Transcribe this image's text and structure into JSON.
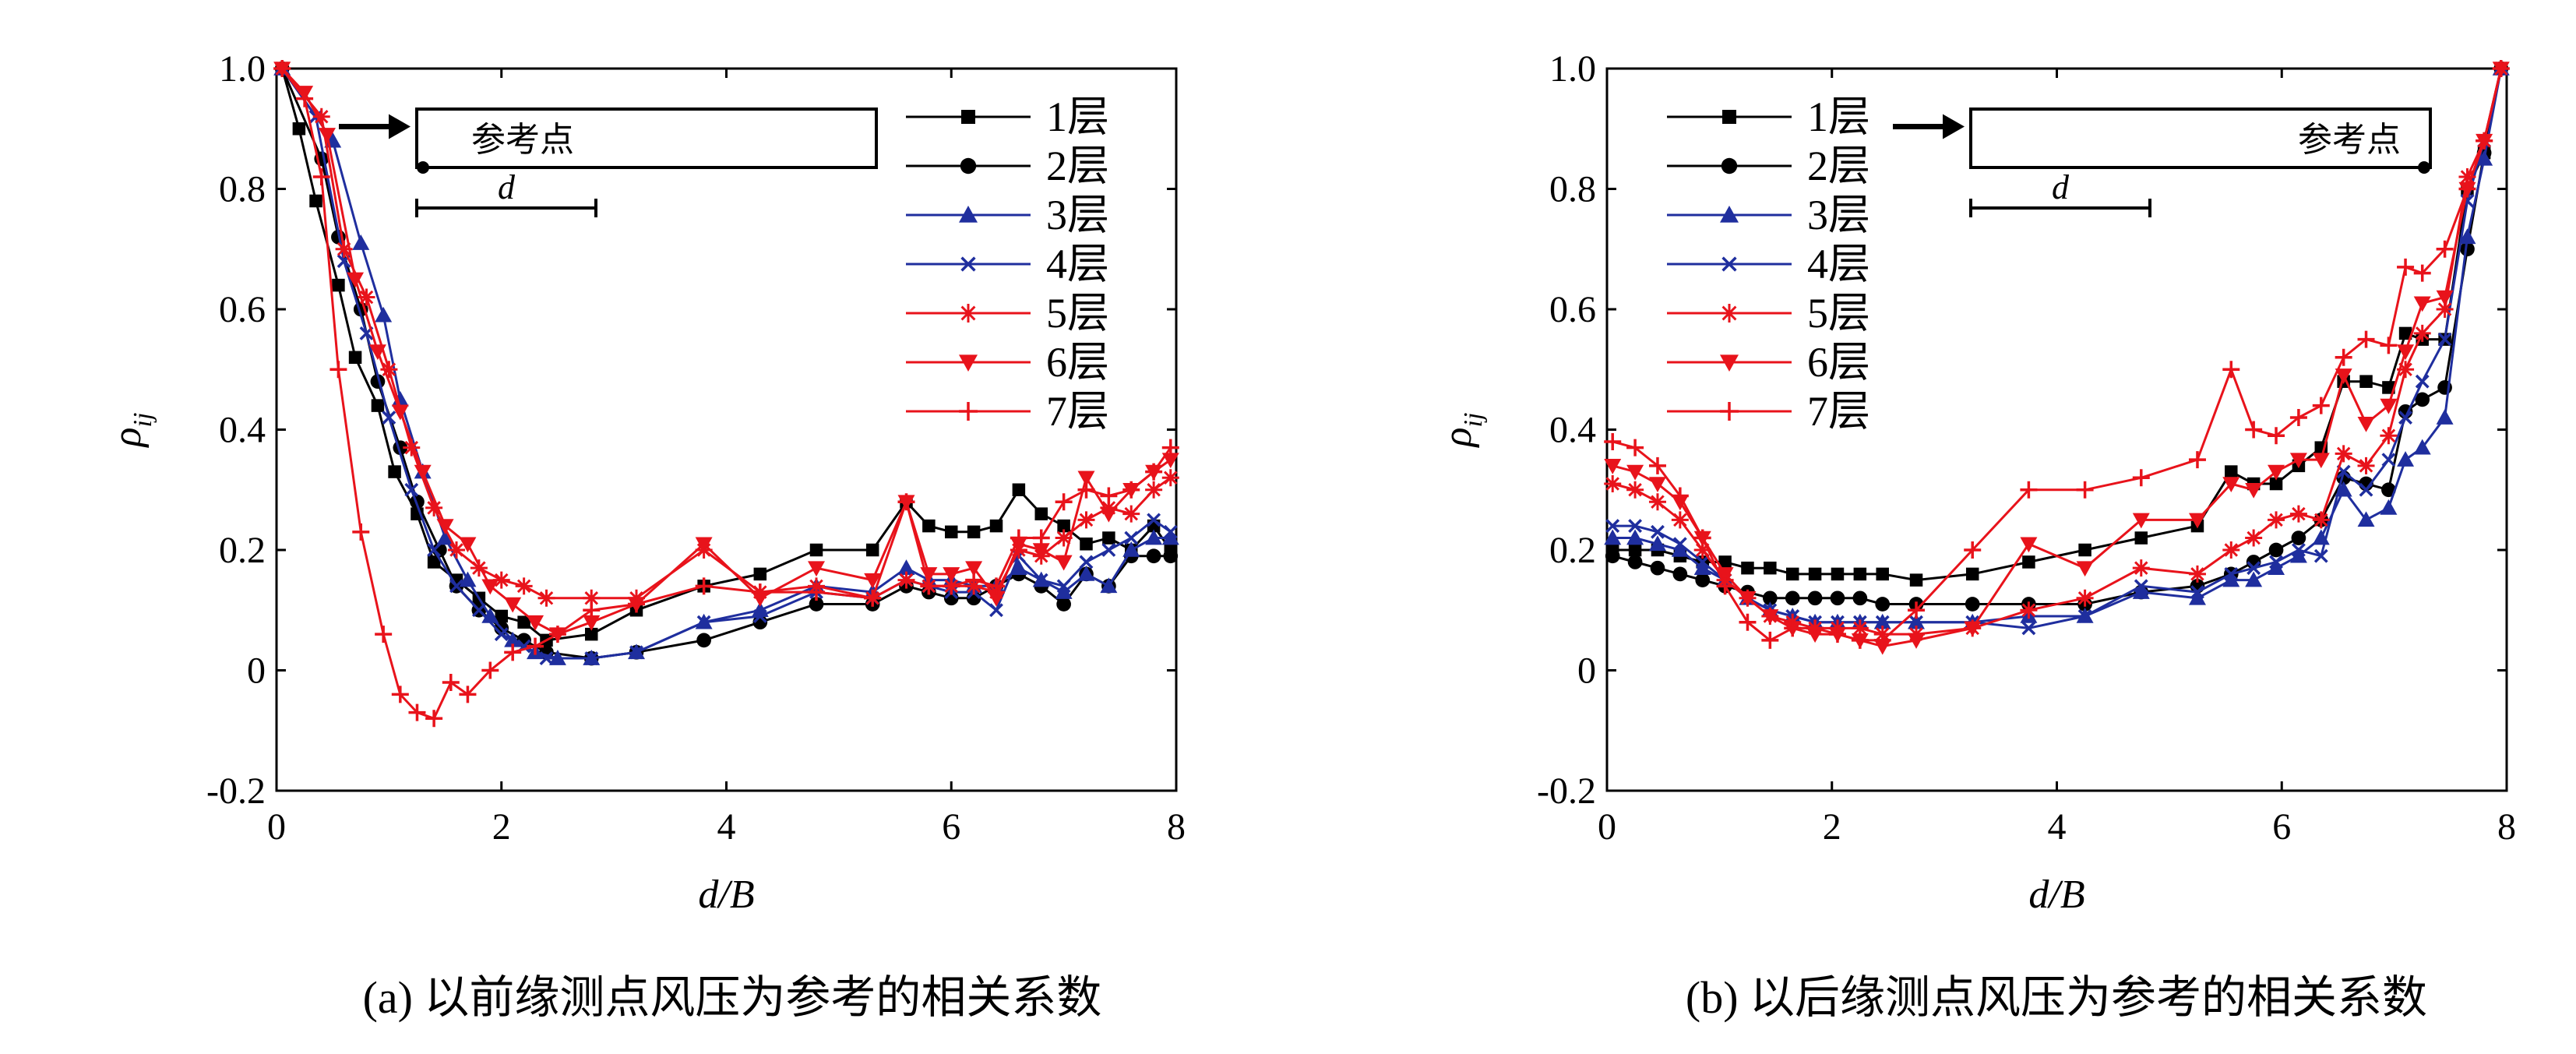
{
  "colors": {
    "1层": "#000000",
    "2层": "#000000",
    "3层": "#1f2e9e",
    "4层": "#1f2e9e",
    "5层": "#e8131b",
    "6层": "#e8131b",
    "7层": "#e8131b"
  },
  "chart_data": [
    {
      "type": "line",
      "caption": "(a) 以前缘测点风压为参考的相关系数",
      "xlabel": "d/B",
      "ylabel": "ρ",
      "ylabel_sub": "ij",
      "xlim": [
        0,
        8
      ],
      "ylim": [
        -0.2,
        1.0
      ],
      "xticks": [
        "0",
        "2",
        "4",
        "6",
        "8"
      ],
      "yticks": [
        "-0.2",
        "0",
        "0.2",
        "0.4",
        "0.6",
        "0.8",
        "1.0"
      ],
      "legend_position": "top-right",
      "inset": {
        "label": "参考点",
        "distance_label": "d",
        "reference_end": "left"
      },
      "series": [
        {
          "name": "1层",
          "marker": "square",
          "x": [
            0.05,
            0.2,
            0.35,
            0.55,
            0.7,
            0.9,
            1.05,
            1.25,
            1.4,
            1.6,
            1.8,
            2.0,
            2.2,
            2.4,
            2.8,
            3.2,
            3.8,
            4.3,
            4.8,
            5.3,
            5.6,
            5.8,
            6.0,
            6.2,
            6.4,
            6.6,
            6.8,
            7.0,
            7.2,
            7.4,
            7.6,
            7.8,
            7.95
          ],
          "y": [
            1.0,
            0.9,
            0.78,
            0.64,
            0.52,
            0.44,
            0.33,
            0.26,
            0.18,
            0.15,
            0.12,
            0.09,
            0.08,
            0.05,
            0.06,
            0.1,
            0.14,
            0.16,
            0.2,
            0.2,
            0.28,
            0.24,
            0.23,
            0.23,
            0.24,
            0.3,
            0.26,
            0.24,
            0.21,
            0.22,
            0.2,
            0.24,
            0.2
          ]
        },
        {
          "name": "2层",
          "marker": "circle",
          "x": [
            0.05,
            0.4,
            0.55,
            0.75,
            0.9,
            1.1,
            1.25,
            1.45,
            1.6,
            1.8,
            2.0,
            2.2,
            2.4,
            2.8,
            3.2,
            3.8,
            4.3,
            4.8,
            5.3,
            5.6,
            5.8,
            6.0,
            6.2,
            6.4,
            6.6,
            6.8,
            7.0,
            7.2,
            7.4,
            7.6,
            7.8,
            7.95
          ],
          "y": [
            1.0,
            0.85,
            0.72,
            0.6,
            0.48,
            0.37,
            0.28,
            0.2,
            0.14,
            0.1,
            0.07,
            0.05,
            0.03,
            0.02,
            0.03,
            0.05,
            0.08,
            0.11,
            0.11,
            0.14,
            0.13,
            0.12,
            0.12,
            0.14,
            0.16,
            0.14,
            0.11,
            0.16,
            0.14,
            0.19,
            0.19,
            0.19
          ]
        },
        {
          "name": "3层",
          "marker": "triangle",
          "x": [
            0.05,
            0.5,
            0.75,
            0.95,
            1.1,
            1.3,
            1.5,
            1.7,
            1.9,
            2.1,
            2.3,
            2.5,
            2.8,
            3.2,
            3.8,
            4.3,
            4.8,
            5.3,
            5.6,
            5.8,
            6.0,
            6.2,
            6.4,
            6.6,
            6.8,
            7.0,
            7.2,
            7.4,
            7.6,
            7.8,
            7.95
          ],
          "y": [
            1.0,
            0.88,
            0.71,
            0.59,
            0.45,
            0.33,
            0.22,
            0.15,
            0.09,
            0.05,
            0.03,
            0.02,
            0.02,
            0.03,
            0.08,
            0.1,
            0.14,
            0.13,
            0.17,
            0.15,
            0.15,
            0.14,
            0.14,
            0.17,
            0.15,
            0.13,
            0.16,
            0.14,
            0.2,
            0.22,
            0.22
          ]
        },
        {
          "name": "4层",
          "marker": "cross",
          "x": [
            0.05,
            0.35,
            0.6,
            0.8,
            1.0,
            1.2,
            1.4,
            1.6,
            1.8,
            2.0,
            2.2,
            2.4,
            2.8,
            3.2,
            3.8,
            4.3,
            4.8,
            5.3,
            5.6,
            5.8,
            6.0,
            6.2,
            6.4,
            6.6,
            6.8,
            7.0,
            7.2,
            7.4,
            7.6,
            7.8,
            7.95
          ],
          "y": [
            1.0,
            0.92,
            0.68,
            0.56,
            0.42,
            0.3,
            0.2,
            0.14,
            0.1,
            0.06,
            0.04,
            0.02,
            0.02,
            0.03,
            0.08,
            0.09,
            0.13,
            0.12,
            0.15,
            0.14,
            0.13,
            0.13,
            0.1,
            0.19,
            0.15,
            0.14,
            0.18,
            0.2,
            0.22,
            0.25,
            0.23
          ]
        },
        {
          "name": "5层",
          "marker": "star",
          "x": [
            0.05,
            0.4,
            0.6,
            0.8,
            1.0,
            1.2,
            1.4,
            1.6,
            1.8,
            2.0,
            2.2,
            2.4,
            2.8,
            3.2,
            3.8,
            4.3,
            4.8,
            5.3,
            5.6,
            5.8,
            6.0,
            6.2,
            6.4,
            6.6,
            6.8,
            7.0,
            7.2,
            7.4,
            7.6,
            7.8,
            7.95
          ],
          "y": [
            1.0,
            0.92,
            0.7,
            0.62,
            0.5,
            0.37,
            0.27,
            0.2,
            0.17,
            0.15,
            0.14,
            0.12,
            0.12,
            0.12,
            0.2,
            0.13,
            0.14,
            0.12,
            0.15,
            0.14,
            0.14,
            0.14,
            0.13,
            0.2,
            0.19,
            0.22,
            0.25,
            0.27,
            0.26,
            0.3,
            0.32
          ]
        },
        {
          "name": "6层",
          "marker": "triangle-down",
          "x": [
            0.05,
            0.25,
            0.45,
            0.7,
            0.9,
            1.1,
            1.3,
            1.5,
            1.7,
            1.9,
            2.1,
            2.3,
            2.5,
            2.8,
            3.2,
            3.8,
            4.3,
            4.8,
            5.3,
            5.6,
            5.8,
            6.0,
            6.2,
            6.4,
            6.6,
            6.8,
            7.0,
            7.2,
            7.4,
            7.6,
            7.8,
            7.95
          ],
          "y": [
            1.0,
            0.96,
            0.89,
            0.65,
            0.53,
            0.43,
            0.33,
            0.24,
            0.21,
            0.14,
            0.11,
            0.08,
            0.06,
            0.08,
            0.11,
            0.21,
            0.12,
            0.17,
            0.15,
            0.28,
            0.16,
            0.16,
            0.17,
            0.12,
            0.21,
            0.2,
            0.18,
            0.32,
            0.26,
            0.3,
            0.33,
            0.35
          ]
        },
        {
          "name": "7层",
          "marker": "plus",
          "x": [
            0.05,
            0.25,
            0.4,
            0.55,
            0.75,
            0.95,
            1.1,
            1.25,
            1.4,
            1.55,
            1.7,
            1.9,
            2.1,
            2.3,
            2.5,
            2.8,
            3.2,
            3.8,
            4.3,
            4.8,
            5.3,
            5.6,
            5.8,
            6.0,
            6.2,
            6.4,
            6.6,
            6.8,
            7.0,
            7.2,
            7.4,
            7.6,
            7.8,
            7.95
          ],
          "y": [
            1.0,
            0.95,
            0.82,
            0.5,
            0.23,
            0.06,
            -0.04,
            -0.07,
            -0.08,
            -0.02,
            -0.04,
            0.0,
            0.03,
            0.04,
            0.06,
            0.1,
            0.11,
            0.14,
            0.13,
            0.13,
            0.12,
            0.28,
            0.14,
            0.14,
            0.15,
            0.14,
            0.22,
            0.22,
            0.28,
            0.3,
            0.29,
            0.3,
            0.33,
            0.37
          ]
        }
      ]
    },
    {
      "type": "line",
      "caption": "(b) 以后缘测点风压为参考的相关系数",
      "xlabel": "d/B",
      "ylabel": "ρ",
      "ylabel_sub": "ij",
      "xlim": [
        0,
        8
      ],
      "ylim": [
        -0.2,
        1.0
      ],
      "xticks": [
        "0",
        "2",
        "4",
        "6",
        "8"
      ],
      "yticks": [
        "-0.2",
        "0",
        "0.2",
        "0.4",
        "0.6",
        "0.8",
        "1.0"
      ],
      "legend_position": "top-left",
      "inset": {
        "label": "参考点",
        "distance_label": "d",
        "reference_end": "right"
      },
      "series": [
        {
          "name": "1层",
          "marker": "square",
          "x": [
            0.05,
            0.25,
            0.45,
            0.65,
            0.85,
            1.05,
            1.25,
            1.45,
            1.65,
            1.85,
            2.05,
            2.25,
            2.45,
            2.75,
            3.25,
            3.75,
            4.25,
            4.75,
            5.25,
            5.55,
            5.75,
            5.95,
            6.15,
            6.35,
            6.55,
            6.75,
            6.95,
            7.1,
            7.25,
            7.45,
            7.65,
            7.8,
            7.95
          ],
          "y": [
            0.2,
            0.2,
            0.2,
            0.19,
            0.18,
            0.18,
            0.17,
            0.17,
            0.16,
            0.16,
            0.16,
            0.16,
            0.16,
            0.15,
            0.16,
            0.18,
            0.2,
            0.22,
            0.24,
            0.33,
            0.31,
            0.31,
            0.34,
            0.37,
            0.48,
            0.48,
            0.47,
            0.56,
            0.55,
            0.55,
            0.8,
            0.86,
            1.0
          ]
        },
        {
          "name": "2层",
          "marker": "circle",
          "x": [
            0.05,
            0.25,
            0.45,
            0.65,
            0.85,
            1.05,
            1.25,
            1.45,
            1.65,
            1.85,
            2.05,
            2.25,
            2.45,
            2.75,
            3.25,
            3.75,
            4.25,
            4.75,
            5.25,
            5.55,
            5.75,
            5.95,
            6.15,
            6.35,
            6.55,
            6.75,
            6.95,
            7.1,
            7.25,
            7.45,
            7.65,
            7.8,
            7.95
          ],
          "y": [
            0.19,
            0.18,
            0.17,
            0.16,
            0.15,
            0.14,
            0.13,
            0.12,
            0.12,
            0.12,
            0.12,
            0.12,
            0.11,
            0.11,
            0.11,
            0.11,
            0.11,
            0.13,
            0.14,
            0.16,
            0.18,
            0.2,
            0.22,
            0.25,
            0.32,
            0.31,
            0.3,
            0.43,
            0.45,
            0.47,
            0.7,
            0.86,
            1.0
          ]
        },
        {
          "name": "3层",
          "marker": "triangle",
          "x": [
            0.05,
            0.25,
            0.45,
            0.65,
            0.85,
            1.05,
            1.25,
            1.45,
            1.65,
            1.85,
            2.05,
            2.25,
            2.45,
            2.75,
            3.25,
            3.75,
            4.25,
            4.75,
            5.25,
            5.55,
            5.75,
            5.95,
            6.15,
            6.35,
            6.55,
            6.75,
            6.95,
            7.1,
            7.25,
            7.45,
            7.65,
            7.8,
            7.95
          ],
          "y": [
            0.22,
            0.22,
            0.21,
            0.2,
            0.17,
            0.15,
            0.12,
            0.1,
            0.09,
            0.08,
            0.08,
            0.08,
            0.08,
            0.08,
            0.08,
            0.09,
            0.09,
            0.13,
            0.12,
            0.15,
            0.15,
            0.17,
            0.19,
            0.22,
            0.3,
            0.25,
            0.27,
            0.35,
            0.37,
            0.42,
            0.72,
            0.85,
            1.0
          ]
        },
        {
          "name": "4层",
          "marker": "cross",
          "x": [
            0.05,
            0.25,
            0.45,
            0.65,
            0.85,
            1.05,
            1.25,
            1.45,
            1.65,
            1.85,
            2.05,
            2.25,
            2.45,
            2.75,
            3.25,
            3.75,
            4.25,
            4.75,
            5.25,
            5.55,
            5.75,
            5.95,
            6.15,
            6.35,
            6.55,
            6.75,
            6.95,
            7.1,
            7.25,
            7.45,
            7.65,
            7.8,
            7.95
          ],
          "y": [
            0.24,
            0.24,
            0.23,
            0.21,
            0.18,
            0.15,
            0.12,
            0.1,
            0.09,
            0.08,
            0.08,
            0.08,
            0.08,
            0.08,
            0.08,
            0.07,
            0.09,
            0.14,
            0.13,
            0.16,
            0.17,
            0.18,
            0.2,
            0.19,
            0.33,
            0.3,
            0.35,
            0.42,
            0.48,
            0.55,
            0.78,
            0.88,
            1.0
          ]
        },
        {
          "name": "5层",
          "marker": "star",
          "x": [
            0.05,
            0.25,
            0.45,
            0.65,
            0.85,
            1.05,
            1.25,
            1.45,
            1.65,
            1.85,
            2.05,
            2.25,
            2.45,
            2.75,
            3.25,
            3.75,
            4.25,
            4.75,
            5.25,
            5.55,
            5.75,
            5.95,
            6.15,
            6.35,
            6.55,
            6.75,
            6.95,
            7.1,
            7.25,
            7.45,
            7.65,
            7.8,
            7.95
          ],
          "y": [
            0.31,
            0.3,
            0.28,
            0.25,
            0.2,
            0.15,
            0.12,
            0.09,
            0.08,
            0.07,
            0.07,
            0.07,
            0.06,
            0.06,
            0.07,
            0.1,
            0.12,
            0.17,
            0.16,
            0.2,
            0.22,
            0.25,
            0.26,
            0.25,
            0.36,
            0.34,
            0.39,
            0.5,
            0.56,
            0.6,
            0.82,
            0.88,
            1.0
          ]
        },
        {
          "name": "6层",
          "marker": "triangle-down",
          "x": [
            0.05,
            0.25,
            0.45,
            0.65,
            0.85,
            1.05,
            1.25,
            1.45,
            1.65,
            1.85,
            2.05,
            2.25,
            2.45,
            2.75,
            3.25,
            3.75,
            4.25,
            4.75,
            5.25,
            5.55,
            5.75,
            5.95,
            6.15,
            6.35,
            6.55,
            6.75,
            6.95,
            7.1,
            7.25,
            7.45,
            7.65,
            7.8,
            7.95
          ],
          "y": [
            0.34,
            0.33,
            0.31,
            0.28,
            0.22,
            0.16,
            0.12,
            0.09,
            0.07,
            0.06,
            0.06,
            0.05,
            0.04,
            0.05,
            0.07,
            0.21,
            0.17,
            0.25,
            0.25,
            0.31,
            0.3,
            0.33,
            0.35,
            0.35,
            0.49,
            0.41,
            0.44,
            0.53,
            0.61,
            0.62,
            0.8,
            0.88,
            1.0
          ]
        },
        {
          "name": "7层",
          "marker": "plus",
          "x": [
            0.05,
            0.25,
            0.45,
            0.65,
            0.85,
            1.05,
            1.25,
            1.45,
            1.65,
            1.85,
            2.05,
            2.25,
            2.45,
            2.75,
            3.25,
            3.75,
            4.25,
            4.75,
            5.25,
            5.55,
            5.75,
            5.95,
            6.15,
            6.35,
            6.55,
            6.75,
            6.95,
            7.1,
            7.25,
            7.45,
            7.65,
            7.8,
            7.95
          ],
          "y": [
            0.38,
            0.37,
            0.34,
            0.29,
            0.22,
            0.14,
            0.08,
            0.05,
            0.07,
            0.07,
            0.06,
            0.05,
            0.05,
            0.1,
            0.2,
            0.3,
            0.3,
            0.32,
            0.35,
            0.5,
            0.4,
            0.39,
            0.42,
            0.44,
            0.52,
            0.55,
            0.54,
            0.67,
            0.66,
            0.7,
            0.8,
            0.88,
            1.0
          ]
        }
      ]
    }
  ]
}
